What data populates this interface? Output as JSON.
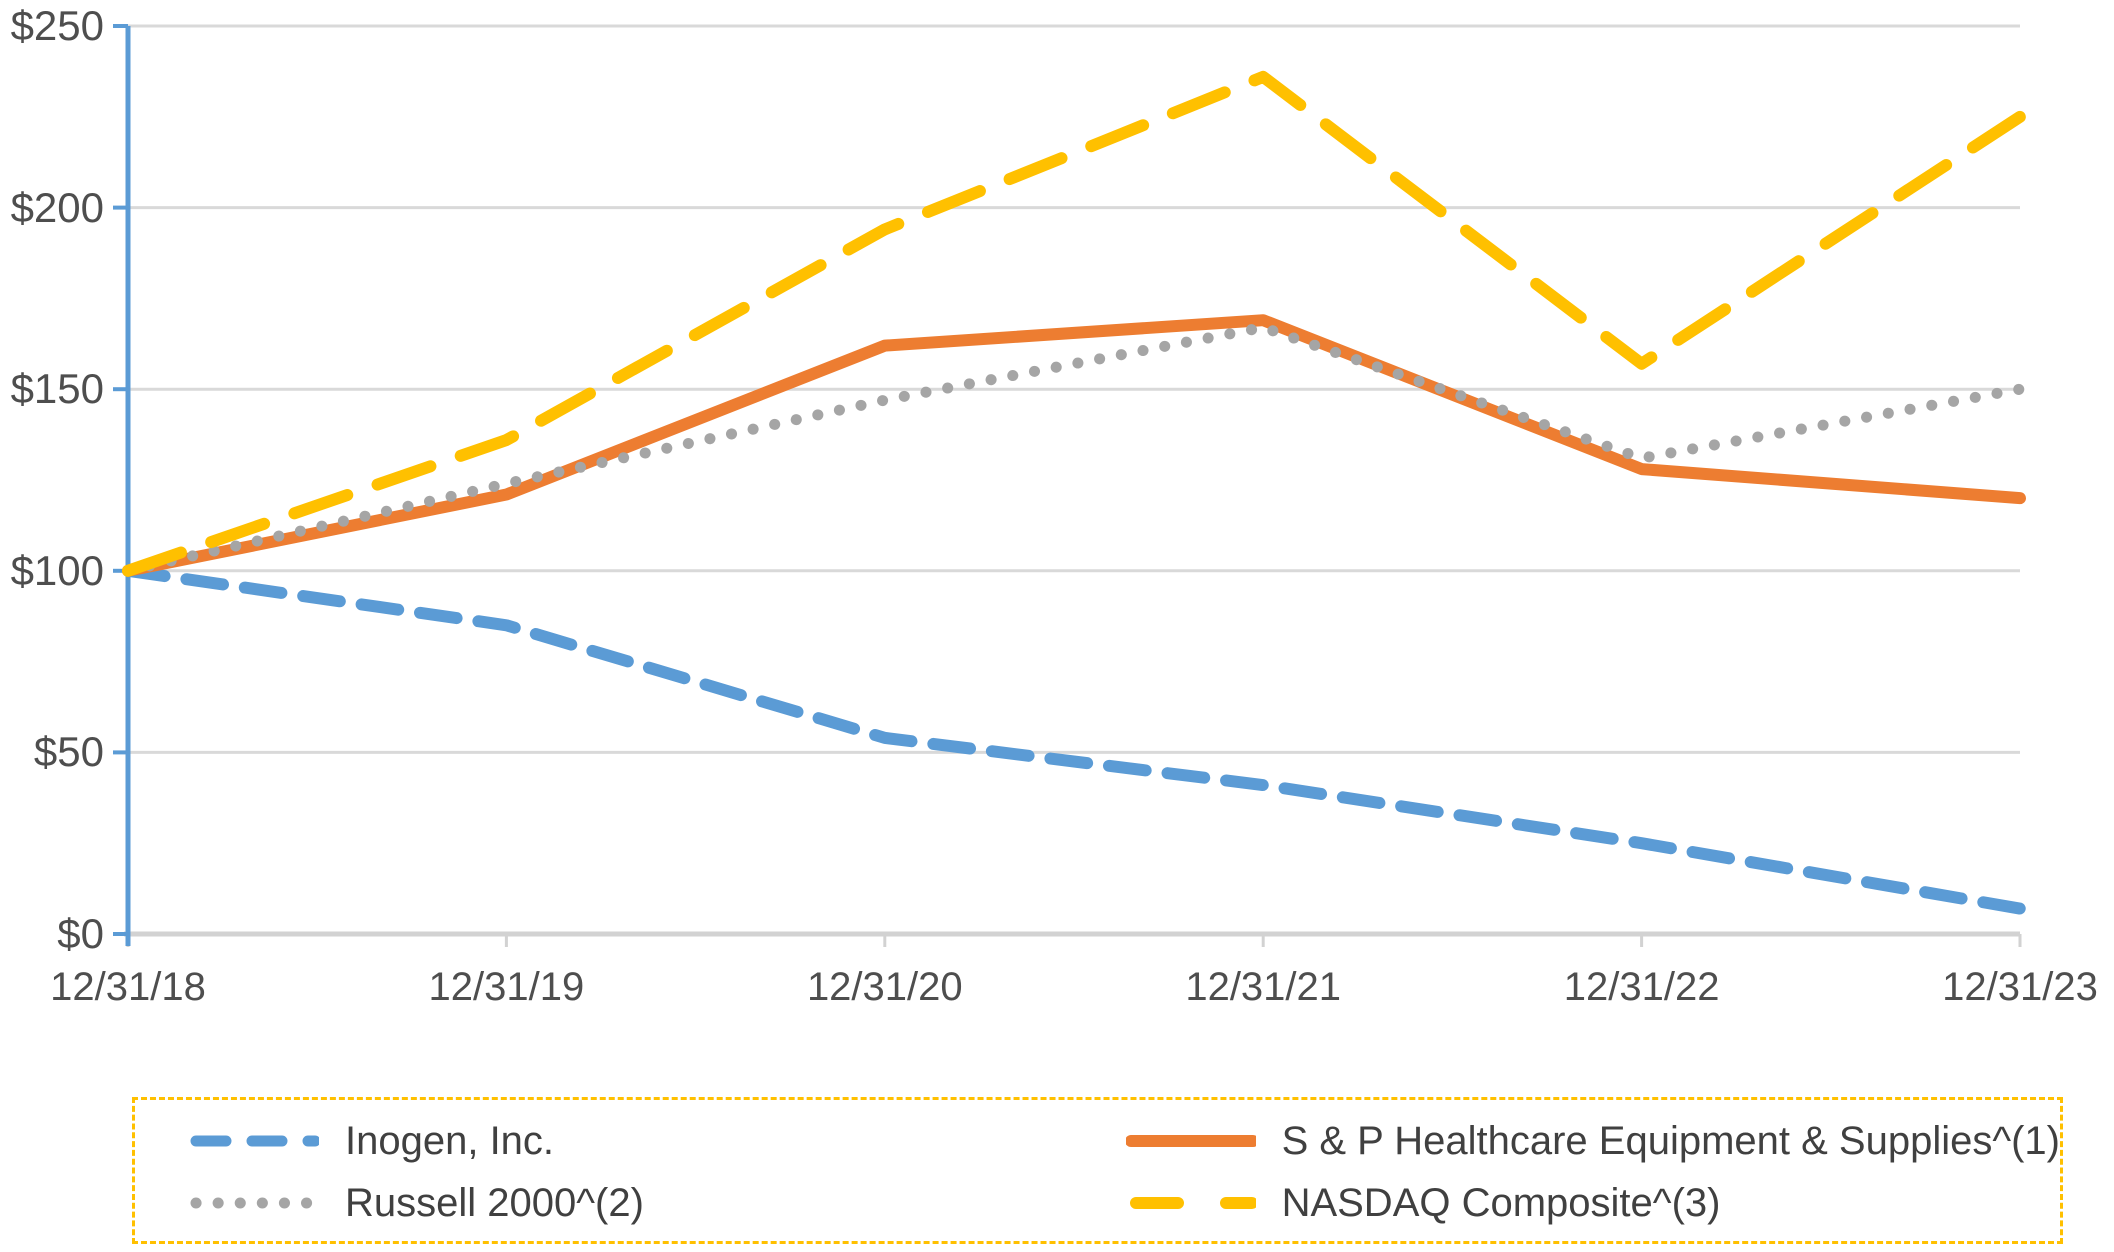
{
  "chart_data": {
    "type": "line",
    "categories": [
      "12/31/18",
      "12/31/19",
      "12/31/20",
      "12/31/21",
      "12/31/22",
      "12/31/23"
    ],
    "series": [
      {
        "name": "Inogen, Inc.",
        "color": "#5B9BD5",
        "style": "dashed",
        "values": [
          100,
          85,
          54,
          41,
          25,
          7
        ]
      },
      {
        "name": "S & P Healthcare Equipment & Supplies^(1)",
        "color": "#ED7D31",
        "style": "solid",
        "values": [
          100,
          121,
          162,
          169,
          128,
          120
        ]
      },
      {
        "name": "Russell 2000^(2)",
        "color": "#A5A5A5",
        "style": "dotted",
        "values": [
          100,
          124,
          147,
          167,
          131,
          150
        ]
      },
      {
        "name": "NASDAQ Composite^(3)",
        "color": "#FFC000",
        "style": "dashed",
        "values": [
          100,
          136,
          194,
          236,
          157,
          225
        ]
      }
    ],
    "ylim": [
      0,
      250
    ],
    "y_ticks": [
      0,
      50,
      100,
      150,
      200,
      250
    ],
    "y_tick_labels": [
      "$0",
      "$50",
      "$100",
      "$150",
      "$200",
      "$250"
    ],
    "grid": true,
    "legend_position": "bottom",
    "axis_colors": {
      "y_axis": "#5B9BD5",
      "x_axis": "#D2D2D2",
      "gridline": "#D9D9D9",
      "tick_text": "#4E4E4E"
    }
  },
  "legend": {
    "border_color": "#FFC000",
    "items": [
      {
        "label": "Inogen, Inc."
      },
      {
        "label": "S & P Healthcare Equipment & Supplies^(1)"
      },
      {
        "label": "Russell 2000^(2)"
      },
      {
        "label": "NASDAQ Composite^(3)"
      }
    ]
  }
}
